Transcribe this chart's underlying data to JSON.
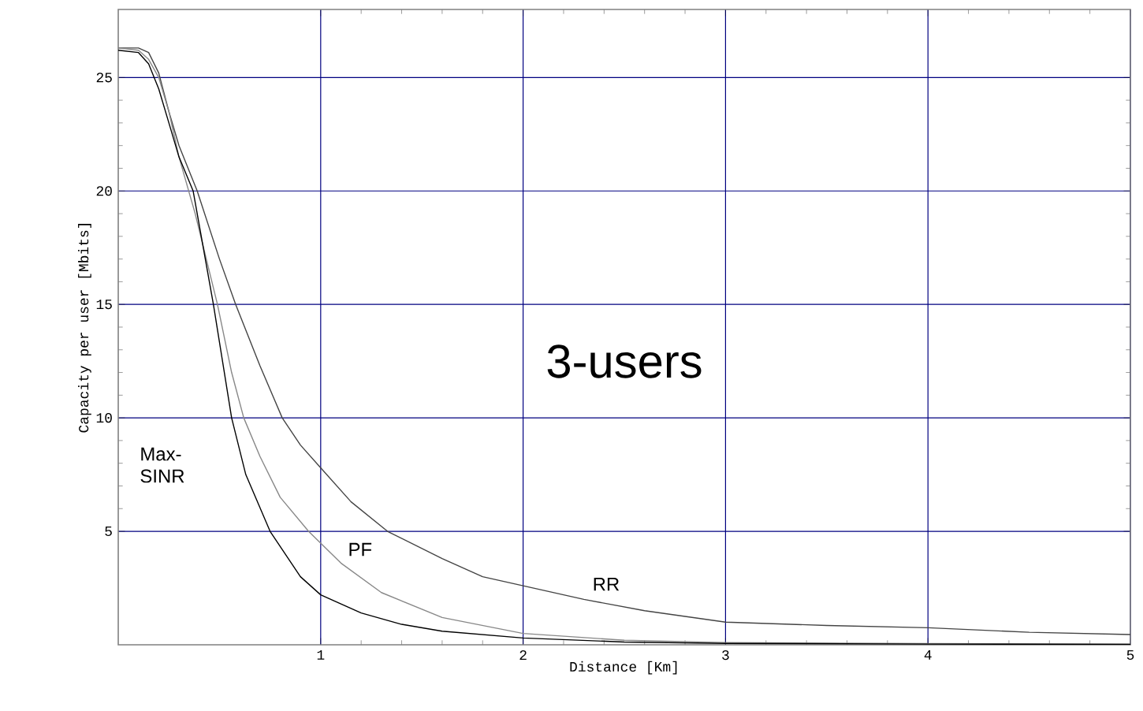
{
  "chart_data": {
    "type": "line",
    "xlabel": "Distance [Km]",
    "ylabel": "Capacity per user [Mbits]",
    "xlim": [
      0,
      5
    ],
    "ylim": [
      0,
      28
    ],
    "xticks": [
      1,
      2,
      3,
      4,
      5
    ],
    "yticks": [
      5,
      10,
      15,
      20,
      25
    ],
    "grid": true,
    "line_style": "solid",
    "series": [
      {
        "name": "RR",
        "color": "#444444",
        "x": [
          0,
          0.1,
          0.15,
          0.2,
          0.25,
          0.3,
          0.39,
          0.5,
          0.58,
          0.7,
          0.81,
          0.9,
          1.0,
          1.15,
          1.33,
          1.6,
          1.8,
          2.0,
          2.3,
          2.6,
          3.0,
          3.5,
          4.0,
          4.5,
          5.0
        ],
        "values": [
          26.3,
          26.3,
          26.1,
          25.2,
          23.5,
          22,
          20,
          17,
          15,
          12.3,
          10,
          8.8,
          7.8,
          6.3,
          5,
          3.8,
          3.0,
          2.6,
          2.0,
          1.5,
          1.0,
          0.85,
          0.75,
          0.55,
          0.45
        ]
      },
      {
        "name": "PF",
        "color": "#888888",
        "x": [
          0,
          0.1,
          0.15,
          0.2,
          0.25,
          0.3,
          0.38,
          0.49,
          0.56,
          0.62,
          0.7,
          0.8,
          0.94,
          1.1,
          1.3,
          1.6,
          2.0,
          2.5,
          3.0,
          4.0,
          5.0
        ],
        "values": [
          26.3,
          26.2,
          25.8,
          25,
          23.5,
          21.5,
          19,
          15,
          12,
          10,
          8.3,
          6.5,
          5,
          3.6,
          2.3,
          1.2,
          0.5,
          0.2,
          0.1,
          0.05,
          0.03
        ]
      },
      {
        "name": "Max-SINR",
        "color": "#000000",
        "x": [
          0,
          0.1,
          0.15,
          0.2,
          0.25,
          0.3,
          0.37,
          0.47,
          0.56,
          0.63,
          0.75,
          0.9,
          1.0,
          1.2,
          1.4,
          1.6,
          2.0,
          2.5,
          3.0,
          4.0,
          5.0
        ],
        "values": [
          26.2,
          26.1,
          25.6,
          24.5,
          23,
          21.5,
          20,
          15,
          10,
          7.5,
          5,
          3.0,
          2.2,
          1.4,
          0.9,
          0.6,
          0.3,
          0.12,
          0.06,
          0.03,
          0.02
        ]
      }
    ],
    "annotations": [
      "3-users"
    ]
  }
}
